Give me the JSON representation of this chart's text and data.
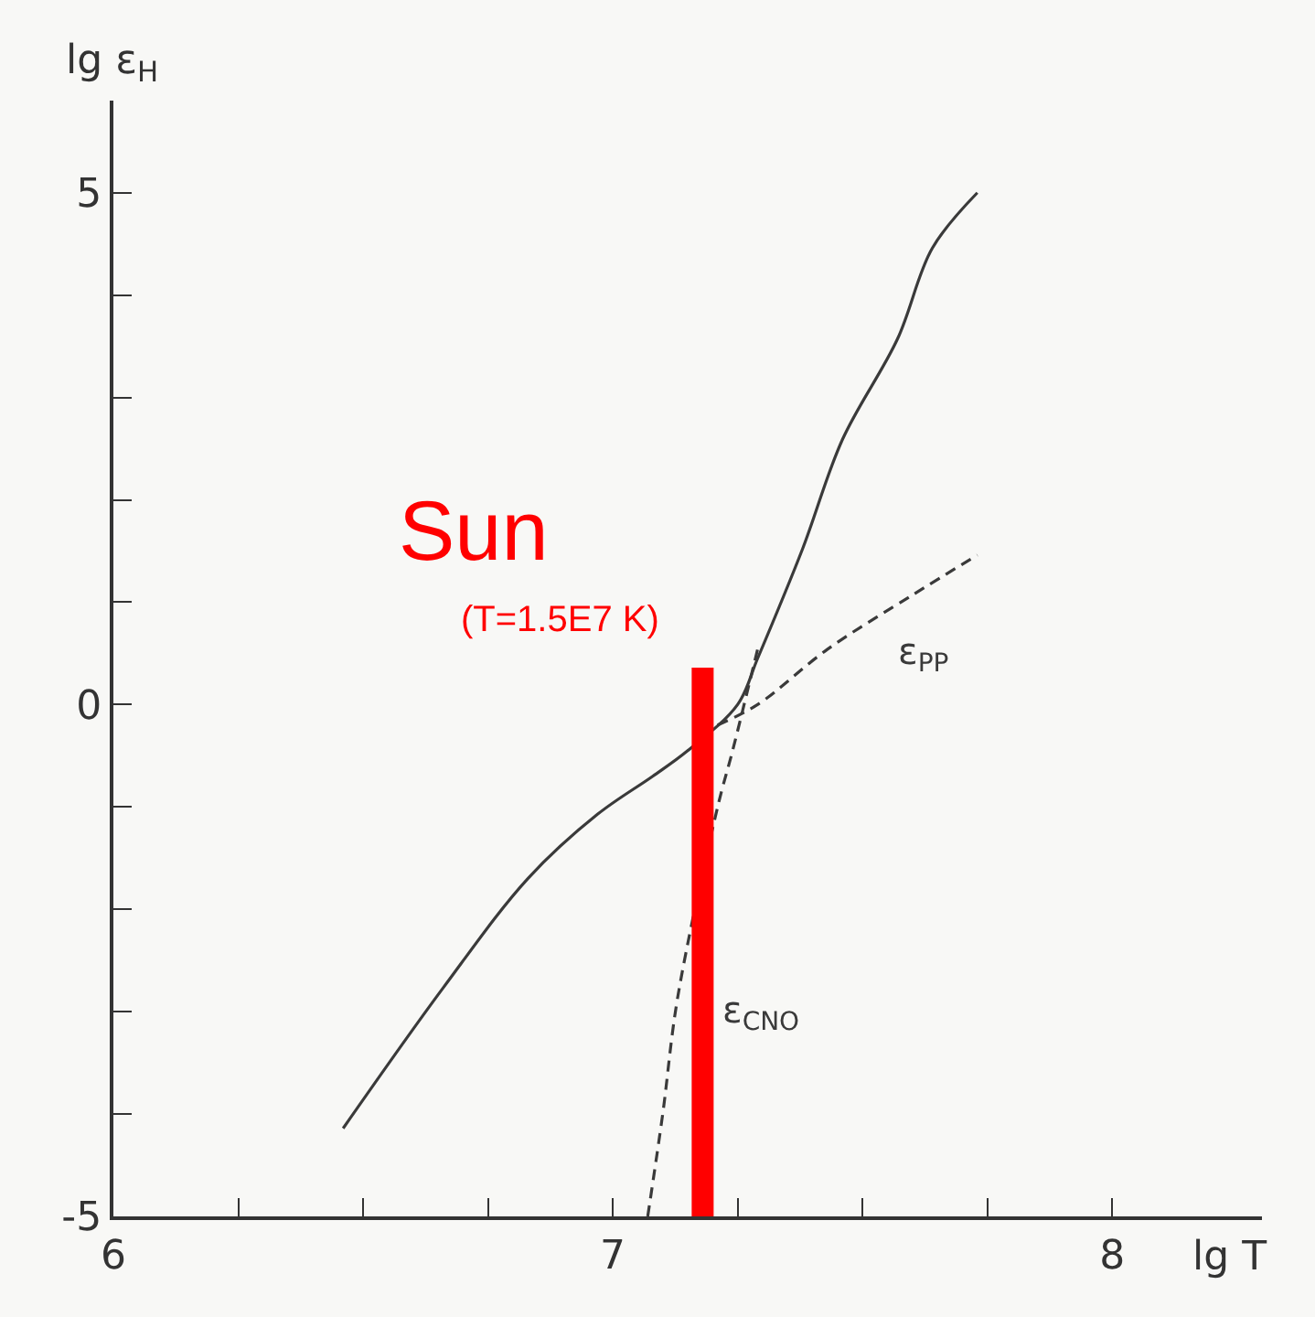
{
  "chart_data": {
    "type": "line",
    "xlabel": "lg T",
    "ylabel": "lg ε$_{H}$",
    "xlim": [
      6,
      8.3
    ],
    "ylim": [
      -5,
      5.9
    ],
    "xticks": [
      6,
      {
        "value": 6.25,
        "label": null
      },
      {
        "value": 6.5,
        "label": null
      },
      {
        "value": 6.75,
        "label": null
      },
      7,
      {
        "value": 7.25,
        "label": null
      },
      {
        "value": 7.5,
        "label": null
      },
      {
        "value": 7.75,
        "label": null
      },
      8
    ],
    "yticks": [
      -5,
      {
        "value": -4,
        "label": null
      },
      {
        "value": -3,
        "label": null
      },
      {
        "value": -2,
        "label": null
      },
      {
        "value": -1,
        "label": null
      },
      0,
      {
        "value": 1,
        "label": null
      },
      {
        "value": 2,
        "label": null
      },
      {
        "value": 3,
        "label": null
      },
      {
        "value": 4,
        "label": null
      },
      5
    ],
    "grid": false,
    "legend": false,
    "series": [
      {
        "color": "#3a3a3a",
        "line_style": "solid",
        "x": [
          6.46,
          6.66,
          6.83,
          6.97,
          7.08,
          7.15,
          7.25,
          7.29,
          7.38,
          7.46,
          7.57,
          7.64,
          7.73
        ],
        "values": [
          -4.14,
          -2.77,
          -1.7,
          -1.07,
          -0.7,
          -0.45,
          0,
          0.45,
          1.52,
          2.59,
          3.57,
          4.46,
          5.0
        ]
      },
      {
        "name": "ε$_{PP}$",
        "color": "#3a3a3a",
        "line_style": "dashed",
        "x": [
          7.21,
          7.29,
          7.43,
          7.6,
          7.73
        ],
        "values": [
          -0.2,
          0,
          0.54,
          1.07,
          1.46
        ]
      },
      {
        "name": "ε$_{CNO}$",
        "color": "#3a3a3a",
        "line_style": "dashed",
        "x": [
          7.07,
          7.1,
          7.13,
          7.21,
          7.24,
          7.29
        ],
        "values": [
          -5,
          -4,
          -2.86,
          -1.0,
          -0.45,
          0.54
        ]
      },
      {
        "color": "#ff0000",
        "line_style": "solid",
        "x": [
          7.18,
          7.18
        ],
        "values": [
          -5,
          0.36
        ]
      }
    ],
    "annotations": [
      "Sun",
      "(T=1.5E7 K)"
    ]
  }
}
